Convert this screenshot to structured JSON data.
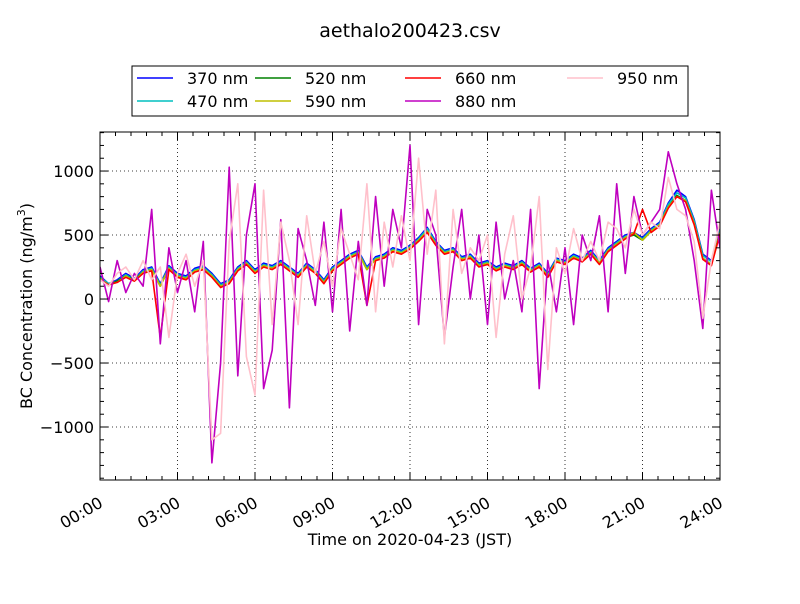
{
  "chart_data": {
    "type": "line",
    "title": "aethalo200423.csv",
    "xlabel": "Time on 2020-04-23 (JST)",
    "ylabel": "BC Concentration (ng/m",
    "ylabel_sup": "3",
    "ylabel_end": ")",
    "xlim_hours": [
      0,
      24
    ],
    "ylim": [
      -1414,
      1305
    ],
    "grid": true,
    "legend_placement": "top-center-outside",
    "x_ticks": [
      "00:00",
      "03:00",
      "06:00",
      "09:00",
      "12:00",
      "15:00",
      "18:00",
      "21:00",
      "24:00"
    ],
    "x_tick_hours": [
      0,
      3,
      6,
      9,
      12,
      15,
      18,
      21,
      24
    ],
    "y_ticks": [
      1000,
      500,
      0,
      -500,
      -1000
    ],
    "y_tick_labels": [
      "1000",
      "500",
      "0",
      "−500",
      "−1000"
    ],
    "x_hours_step": 0.3333333,
    "series": [
      {
        "name": "370 nm",
        "color": "#0000ff",
        "values": [
          180,
          120,
          150,
          200,
          160,
          230,
          250,
          120,
          260,
          200,
          180,
          240,
          260,
          200,
          120,
          150,
          250,
          300,
          230,
          280,
          260,
          300,
          250,
          200,
          280,
          230,
          150,
          250,
          300,
          350,
          380,
          250,
          330,
          350,
          400,
          380,
          420,
          480,
          560,
          450,
          380,
          400,
          330,
          350,
          280,
          300,
          250,
          280,
          260,
          300,
          240,
          280,
          200,
          320,
          300,
          350,
          320,
          380,
          300,
          400,
          450,
          500,
          520,
          480,
          550,
          600,
          750,
          850,
          800,
          620,
          350,
          300,
          550
        ]
      },
      {
        "name": "470 nm",
        "color": "#00bfbf",
        "values": [
          170,
          120,
          140,
          190,
          150,
          220,
          240,
          110,
          250,
          190,
          170,
          230,
          250,
          190,
          110,
          140,
          240,
          290,
          220,
          270,
          250,
          290,
          240,
          190,
          270,
          220,
          140,
          240,
          290,
          340,
          370,
          240,
          320,
          340,
          390,
          370,
          410,
          470,
          550,
          440,
          370,
          390,
          320,
          340,
          270,
          290,
          240,
          270,
          250,
          290,
          230,
          270,
          190,
          310,
          290,
          340,
          310,
          370,
          290,
          390,
          440,
          490,
          510,
          470,
          540,
          590,
          740,
          830,
          790,
          610,
          340,
          290,
          540
        ]
      },
      {
        "name": "520 nm",
        "color": "#008000",
        "values": [
          160,
          110,
          140,
          180,
          150,
          210,
          230,
          100,
          240,
          180,
          160,
          220,
          240,
          180,
          100,
          130,
          230,
          280,
          210,
          260,
          240,
          280,
          230,
          180,
          260,
          210,
          130,
          230,
          280,
          330,
          360,
          230,
          310,
          330,
          380,
          360,
          400,
          460,
          530,
          430,
          360,
          380,
          310,
          330,
          260,
          280,
          230,
          260,
          240,
          280,
          220,
          260,
          180,
          300,
          280,
          330,
          300,
          360,
          280,
          380,
          430,
          480,
          500,
          460,
          530,
          580,
          720,
          810,
          770,
          590,
          320,
          270,
          520
        ]
      },
      {
        "name": "590 nm",
        "color": "#bfbf00",
        "values": [
          160,
          110,
          130,
          180,
          140,
          210,
          230,
          100,
          240,
          180,
          160,
          220,
          240,
          180,
          100,
          130,
          230,
          280,
          210,
          260,
          240,
          280,
          230,
          180,
          260,
          210,
          130,
          230,
          280,
          330,
          360,
          230,
          310,
          330,
          380,
          360,
          400,
          460,
          530,
          430,
          360,
          380,
          310,
          330,
          260,
          280,
          230,
          260,
          240,
          280,
          220,
          260,
          180,
          300,
          280,
          330,
          300,
          360,
          280,
          380,
          430,
          480,
          520,
          460,
          530,
          580,
          720,
          800,
          770,
          590,
          320,
          270,
          520
        ]
      },
      {
        "name": "660 nm",
        "color": "#ff0000",
        "values": [
          150,
          110,
          130,
          170,
          140,
          200,
          220,
          -300,
          230,
          170,
          150,
          210,
          230,
          170,
          90,
          120,
          220,
          270,
          200,
          250,
          230,
          270,
          220,
          170,
          250,
          200,
          120,
          220,
          270,
          320,
          350,
          -50,
          300,
          320,
          370,
          350,
          390,
          450,
          520,
          420,
          350,
          370,
          300,
          320,
          250,
          270,
          220,
          250,
          230,
          270,
          210,
          250,
          170,
          290,
          270,
          320,
          290,
          350,
          270,
          370,
          420,
          470,
          510,
          700,
          520,
          570,
          710,
          800,
          760,
          580,
          310,
          260,
          510
        ]
      },
      {
        "name": "880 nm",
        "color": "#bf00bf",
        "values": [
          250,
          -20,
          300,
          50,
          200,
          100,
          700,
          -350,
          400,
          50,
          300,
          -100,
          450,
          -1280,
          -500,
          1030,
          -600,
          500,
          900,
          -700,
          -400,
          620,
          -850,
          550,
          300,
          -50,
          600,
          -100,
          700,
          -250,
          450,
          -50,
          800,
          100,
          700,
          400,
          1200,
          -200,
          700,
          500,
          -300,
          250,
          700,
          0,
          500,
          -200,
          600,
          0,
          300,
          -100,
          700,
          -700,
          300,
          -100,
          400,
          -200,
          500,
          300,
          650,
          -100,
          900,
          200,
          800,
          500,
          600,
          700,
          1150,
          900,
          700,
          300,
          -230,
          850,
          400
        ]
      },
      {
        "name": "950 nm",
        "color": "#ffc0cb",
        "values": [
          150,
          100,
          200,
          250,
          150,
          300,
          150,
          250,
          -300,
          200,
          350,
          100,
          300,
          -1100,
          -1050,
          450,
          900,
          -450,
          -750,
          850,
          -200,
          600,
          300,
          -200,
          650,
          200,
          450,
          100,
          550,
          350,
          150,
          900,
          -100,
          600,
          250,
          650,
          300,
          1100,
          350,
          850,
          -350,
          700,
          200,
          400,
          300,
          500,
          -300,
          350,
          650,
          0,
          250,
          800,
          -550,
          400,
          200,
          550,
          300,
          450,
          300,
          600,
          550,
          400,
          700,
          500,
          600,
          550,
          950,
          700,
          650,
          450,
          -150,
          300,
          600
        ]
      }
    ]
  }
}
